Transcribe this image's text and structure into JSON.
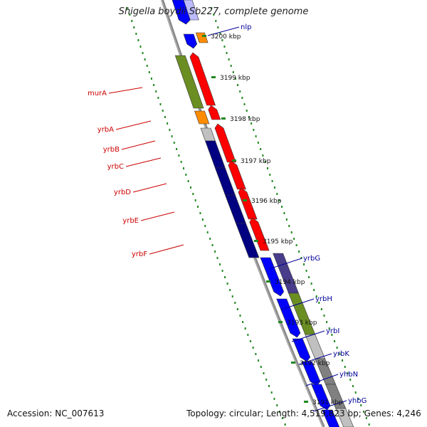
{
  "title": "Shigella boydii Sb227, complete genome",
  "footer": {
    "accession_label": "Accession:",
    "accession": "NC_007613",
    "topology_label": "Topology:",
    "topology": "circular",
    "length_label": "Length:",
    "length": "4,519,823 bp",
    "genes_label": "Genes:",
    "genes": "4,246"
  },
  "colors": {
    "backbone": "#888888",
    "minus_strand_labels": "#cc0000",
    "plus_strand_labels": "#000099",
    "dots": "#228822",
    "red": "#ff0000",
    "blue": "#0000ff",
    "navy": "#000080",
    "olive": "#6b8e23",
    "orange": "#ff8c00",
    "grey": "#c0c0c0",
    "darkgrey": "#808080",
    "slate": "#483d8b"
  },
  "ticks": [
    {
      "label": "3200 kbp"
    },
    {
      "label": "3199 kbp"
    },
    {
      "label": "3198 kbp"
    },
    {
      "label": "3197 kbp"
    },
    {
      "label": "3196 kbp"
    },
    {
      "label": "3195 kbp"
    },
    {
      "label": "3194 kbp"
    },
    {
      "label": "3193 kbp"
    },
    {
      "label": "3192 kbp"
    },
    {
      "label": "3191 kbp"
    }
  ],
  "genes_left": [
    {
      "name": "murA"
    },
    {
      "name": "yrbA"
    },
    {
      "name": "yrbB"
    },
    {
      "name": "yrbC"
    },
    {
      "name": "yrbD"
    },
    {
      "name": "yrbE"
    },
    {
      "name": "yrbF"
    }
  ],
  "genes_right": [
    {
      "name": "nlp"
    },
    {
      "name": "yrbG"
    },
    {
      "name": "yrbH"
    },
    {
      "name": "yrbI"
    },
    {
      "name": "yrbK"
    },
    {
      "name": "yhbN"
    },
    {
      "name": "yhbG"
    }
  ]
}
